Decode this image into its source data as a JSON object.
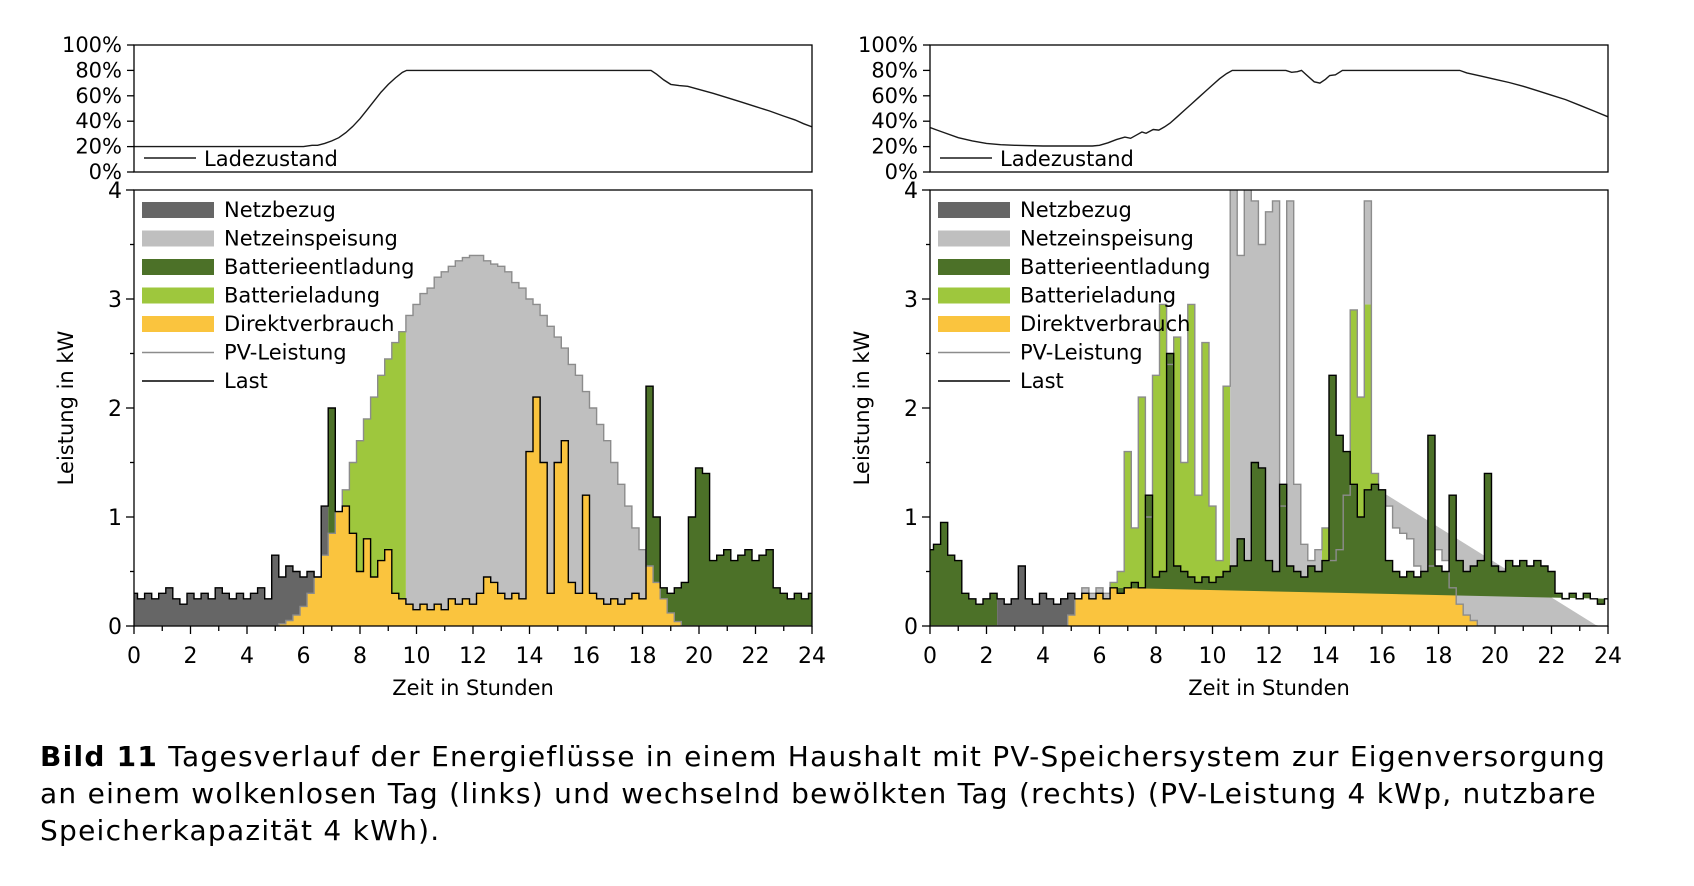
{
  "caption": {
    "label": "Bild 11",
    "line1_rest": " Tagesverlauf der Energieflüsse in einem Haushalt mit PV-Speichersystem zur Eigenversorgung",
    "line2": "an einem wolkenlosen Tag (links) und wechselnd bewölkten Tag (rechts) (PV-Leistung 4 kWp, nutzbare",
    "line3": "Speicherkapazität 4 kWh)."
  },
  "colors": {
    "netzbezug": "#666666",
    "netzeinspeisung": "#bfbfbf",
    "batterieentladung": "#4c7128",
    "batterieladung": "#9ec73d",
    "direktverbrauch": "#fac43e",
    "pv_line": "#8c8c8c",
    "last_line": "#000000",
    "soc_line": "#1a1a1a",
    "axis": "#000000"
  },
  "legend": [
    {
      "key": "netzbezug",
      "label": "Netzbezug",
      "type": "fill"
    },
    {
      "key": "netzeinspeisung",
      "label": "Netzeinspeisung",
      "type": "fill"
    },
    {
      "key": "batterieentladung",
      "label": "Batterieentladung",
      "type": "fill"
    },
    {
      "key": "batterieladung",
      "label": "Batterieladung",
      "type": "fill"
    },
    {
      "key": "direktverbrauch",
      "label": "Direktverbrauch",
      "type": "fill"
    },
    {
      "key": "pv_line",
      "label": "PV-Leistung",
      "type": "line"
    },
    {
      "key": "last_line",
      "label": "Last",
      "type": "line"
    }
  ],
  "axes": {
    "xlabel": "Zeit in Stunden",
    "ylabel": "Leistung in kW",
    "x_major": [
      0,
      2,
      4,
      6,
      8,
      10,
      12,
      14,
      16,
      18,
      20,
      22,
      24
    ],
    "x_minor_step": 1,
    "y_major": [
      0,
      1,
      2,
      3,
      4
    ],
    "y_minor_step": 0.5,
    "xlim": [
      0,
      24
    ],
    "ylim": [
      0,
      4
    ],
    "soc_labels": [
      "0%",
      "20%",
      "40%",
      "60%",
      "80%",
      "100%"
    ],
    "soc_values": [
      0,
      20,
      40,
      60,
      80,
      100
    ],
    "soc_legend_label": "Ladezustand"
  },
  "chart_data": [
    {
      "type": "area",
      "name": "wolkenloser Tag (links)",
      "t_start": 0,
      "t_step": 0.25,
      "n": 97,
      "soc": {
        "x": [
          0,
          6.0,
          6.3,
          6.5,
          6.75,
          7.0,
          7.25,
          7.5,
          7.75,
          8.0,
          8.25,
          8.5,
          8.75,
          9.0,
          9.25,
          9.5,
          9.65,
          18.3,
          18.5,
          18.75,
          19.0,
          19.3,
          19.6,
          20.0,
          20.5,
          21.0,
          21.5,
          22.0,
          22.5,
          23.0,
          23.4,
          23.7,
          24.0
        ],
        "y_percent": [
          20,
          20,
          21,
          21,
          22.5,
          24.5,
          27,
          31,
          36,
          42,
          49,
          56,
          63,
          69,
          74,
          78.5,
          80,
          80,
          77,
          72.5,
          69,
          68,
          67.5,
          65,
          62,
          58.5,
          55,
          51.5,
          48,
          44,
          41,
          38,
          35.5
        ]
      },
      "pv_kw": [
        0,
        0,
        0,
        0,
        0,
        0,
        0,
        0,
        0,
        0,
        0,
        0,
        0,
        0,
        0,
        0,
        0,
        0,
        0,
        0,
        0,
        0.02,
        0.05,
        0.1,
        0.18,
        0.3,
        0.45,
        0.65,
        0.85,
        1.05,
        1.25,
        1.5,
        1.7,
        1.9,
        2.1,
        2.3,
        2.45,
        2.6,
        2.7,
        2.85,
        2.95,
        3.05,
        3.1,
        3.2,
        3.25,
        3.3,
        3.35,
        3.38,
        3.4,
        3.4,
        3.35,
        3.32,
        3.3,
        3.25,
        3.15,
        3.1,
        3.0,
        2.95,
        2.85,
        2.75,
        2.65,
        2.55,
        2.4,
        2.3,
        2.15,
        2.0,
        1.85,
        1.7,
        1.5,
        1.3,
        1.1,
        0.9,
        0.7,
        0.55,
        0.4,
        0.25,
        0.12,
        0.04,
        0,
        0,
        0,
        0,
        0,
        0,
        0,
        0,
        0,
        0,
        0,
        0,
        0,
        0,
        0,
        0,
        0,
        0,
        0
      ],
      "last_kw": [
        0.3,
        0.25,
        0.3,
        0.25,
        0.3,
        0.35,
        0.25,
        0.2,
        0.3,
        0.25,
        0.3,
        0.25,
        0.35,
        0.3,
        0.25,
        0.3,
        0.25,
        0.3,
        0.35,
        0.25,
        0.65,
        0.45,
        0.55,
        0.5,
        0.45,
        0.5,
        0.45,
        1.1,
        2.0,
        1.05,
        1.1,
        0.85,
        0.5,
        0.8,
        0.45,
        0.6,
        0.7,
        0.3,
        0.25,
        0.2,
        0.15,
        0.2,
        0.15,
        0.2,
        0.15,
        0.25,
        0.2,
        0.25,
        0.2,
        0.3,
        0.45,
        0.4,
        0.3,
        0.25,
        0.3,
        0.25,
        1.6,
        2.1,
        1.5,
        0.3,
        1.5,
        1.7,
        0.4,
        0.3,
        1.2,
        0.3,
        0.25,
        0.2,
        0.25,
        0.2,
        0.25,
        0.3,
        0.25,
        2.2,
        1.0,
        0.35,
        0.3,
        0.35,
        0.4,
        1.0,
        1.45,
        1.4,
        0.6,
        0.65,
        0.7,
        0.6,
        0.65,
        0.7,
        0.6,
        0.65,
        0.7,
        0.35,
        0.3,
        0.25,
        0.3,
        0.25,
        0.3
      ],
      "charge_cap_kw": 4,
      "surplus_segments": [
        {
          "from": 0,
          "to": 6.8,
          "mode": "netzeinspeisung"
        },
        {
          "from": 6.8,
          "to": 9.7,
          "mode": "batterieladung"
        },
        {
          "from": 9.7,
          "to": 18.45,
          "mode": "netzeinspeisung"
        },
        {
          "from": 18.45,
          "to": 24,
          "mode": "batterieladung"
        }
      ],
      "deficit_segments": [
        {
          "from": 0,
          "to": 6.9,
          "mode": "netzbezug"
        },
        {
          "from": 6.9,
          "to": 24,
          "mode": "batterieentladung"
        }
      ]
    },
    {
      "type": "area",
      "name": "wechselnd bewölkter Tag (rechts)",
      "t_start": 0,
      "t_step": 0.25,
      "n": 97,
      "soc": {
        "x": [
          0,
          0.25,
          0.5,
          1.0,
          1.5,
          2.0,
          2.5,
          3.0,
          4.0,
          5.0,
          5.75,
          6.0,
          6.3,
          6.6,
          6.9,
          7.1,
          7.3,
          7.5,
          7.65,
          7.9,
          8.1,
          8.3,
          8.5,
          8.75,
          9.0,
          9.25,
          9.5,
          9.75,
          10.0,
          10.25,
          10.5,
          10.7,
          12.6,
          12.8,
          13.0,
          13.15,
          13.35,
          13.6,
          13.8,
          14.0,
          14.15,
          14.35,
          14.6,
          18.75,
          19.0,
          19.5,
          20.0,
          20.5,
          21.0,
          21.5,
          22.0,
          22.5,
          23.0,
          23.5,
          24.0
        ],
        "y_percent": [
          35,
          33,
          31,
          27,
          24.5,
          22.5,
          21.5,
          21,
          20.5,
          20.5,
          20.5,
          21,
          23,
          25.5,
          27.5,
          26.5,
          29,
          31.5,
          30.5,
          33.5,
          33,
          35.5,
          38.5,
          43.5,
          48.5,
          53.5,
          58.5,
          63.5,
          68.5,
          73.5,
          77.5,
          80,
          80,
          78.5,
          79,
          80,
          76,
          71,
          70,
          73,
          76,
          76.5,
          80,
          80,
          78,
          75.5,
          73,
          70.5,
          67.5,
          64,
          60.5,
          57,
          52.5,
          48,
          43.5
        ]
      },
      "pv_kw": [
        0,
        0,
        0,
        0,
        0,
        0,
        0,
        0,
        0,
        0,
        0,
        0,
        0,
        0,
        0,
        0,
        0,
        0,
        0,
        0,
        0.1,
        0.25,
        0.35,
        0.3,
        0.35,
        0.3,
        0.4,
        0.5,
        1.6,
        0.9,
        2.1,
        1.0,
        2.3,
        2.95,
        2.4,
        2.65,
        1.5,
        2.95,
        1.2,
        2.6,
        1.1,
        0.6,
        2.2,
        4.2,
        3.4,
        4.2,
        3.9,
        3.5,
        3.8,
        3.9,
        1.1,
        3.9,
        1.3,
        0.75,
        0.6,
        0.7,
        0.9,
        0.6,
        0.7,
        1.2,
        2.9,
        2.1,
        3.9,
        1.4,
        1.25,
        1.1,
        0.9,
        0.85,
        0.8,
        0.55,
        0.5,
        0.55,
        0.7,
        0.6,
        0.35,
        0.2,
        0.1,
        0.05,
        0,
        0,
        0,
        0,
        0,
        0,
        0,
        0,
        0,
        0,
        0,
        0,
        0,
        0,
        0,
        0,
        0
      ],
      "last_kw": [
        0.7,
        0.75,
        0.95,
        0.65,
        0.6,
        0.3,
        0.25,
        0.2,
        0.25,
        0.3,
        0.25,
        0.2,
        0.25,
        0.55,
        0.25,
        0.2,
        0.3,
        0.25,
        0.2,
        0.25,
        0.3,
        0.25,
        0.3,
        0.25,
        0.3,
        0.25,
        0.35,
        0.3,
        0.35,
        0.4,
        0.35,
        1.2,
        0.45,
        0.5,
        2.5,
        0.55,
        0.5,
        0.45,
        0.4,
        0.45,
        0.4,
        0.45,
        0.5,
        0.55,
        0.8,
        0.6,
        1.5,
        1.45,
        0.6,
        0.5,
        1.3,
        0.55,
        0.5,
        0.45,
        0.55,
        0.5,
        0.6,
        2.3,
        1.75,
        1.6,
        1.3,
        1.0,
        1.25,
        1.3,
        1.25,
        0.6,
        0.5,
        0.45,
        0.5,
        0.45,
        0.5,
        1.75,
        0.55,
        0.5,
        1.2,
        0.6,
        0.5,
        0.55,
        0.6,
        1.4,
        0.55,
        0.5,
        0.6,
        0.55,
        0.6,
        0.55,
        0.6,
        0.55,
        0.5,
        0.3,
        0.25,
        0.3,
        0.25,
        0.3,
        0.25,
        0.2,
        0.25
      ],
      "charge_cap_kw": 2.95,
      "surplus_segments": [
        {
          "from": 0,
          "to": 6.4,
          "mode": "netzeinspeisung"
        },
        {
          "from": 6.4,
          "to": 10.65,
          "mode": "batterieladung"
        },
        {
          "from": 10.65,
          "to": 13.9,
          "mode": "netzeinspeisung"
        },
        {
          "from": 13.9,
          "to": 15.85,
          "mode": "batterieladung"
        },
        {
          "from": 15.85,
          "to": 24,
          "mode": "netzeinspeisung"
        }
      ],
      "deficit_segments": [
        {
          "from": 0,
          "to": 2.35,
          "mode": "batterieentladung"
        },
        {
          "from": 2.35,
          "to": 6.3,
          "mode": "netzbezug"
        },
        {
          "from": 6.3,
          "to": 24,
          "mode": "batterieentladung"
        }
      ]
    }
  ]
}
